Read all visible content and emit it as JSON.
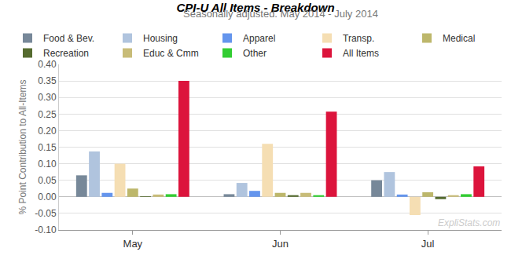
{
  "chart_data": {
    "type": "bar",
    "title": "CPI-U All Items - Breakdown",
    "subtitle": "Seasonally adjusted. May 2014 - July 2014",
    "y_label": "% Point Contribution to All-Items",
    "categories": [
      "May",
      "Jun",
      "Jul"
    ],
    "series": [
      {
        "name": "Food & Bev.",
        "color": "#778899",
        "values": [
          0.065,
          0.008,
          0.05
        ]
      },
      {
        "name": "Housing",
        "color": "#b0c4de",
        "values": [
          0.137,
          0.042,
          0.075
        ]
      },
      {
        "name": "Apparel",
        "color": "#6495ed",
        "values": [
          0.012,
          0.018,
          0.007
        ]
      },
      {
        "name": "Transp.",
        "color": "#f5deb3",
        "values": [
          0.1,
          0.16,
          -0.055
        ]
      },
      {
        "name": "Medical",
        "color": "#bdb76b",
        "values": [
          0.025,
          0.012,
          0.014
        ]
      },
      {
        "name": "Recreation",
        "color": "#556b2f",
        "values": [
          0.002,
          0.005,
          -0.007
        ]
      },
      {
        "name": "Educ & Cmm",
        "color": "#c8bc78",
        "values": [
          0.007,
          0.012,
          0.005
        ]
      },
      {
        "name": "Other",
        "color": "#32cd32",
        "values": [
          0.008,
          0.005,
          0.008
        ]
      },
      {
        "name": "All Items",
        "color": "#dc143c",
        "values": [
          0.35,
          0.257,
          0.092
        ]
      }
    ],
    "ylim": [
      -0.1,
      0.4
    ],
    "yticks": [
      {
        "value": -0.1,
        "label": "-0.10"
      },
      {
        "value": -0.05,
        "label": "-0.05"
      },
      {
        "value": 0,
        "label": "0.00"
      },
      {
        "value": 0.05,
        "label": "0.05"
      },
      {
        "value": 0.1,
        "label": "0.10"
      },
      {
        "value": 0.15,
        "label": "0.15"
      },
      {
        "value": 0.2,
        "label": "0.20"
      },
      {
        "value": 0.25,
        "label": "0.25"
      },
      {
        "value": 0.3,
        "label": "0.30"
      },
      {
        "value": 0.35,
        "label": "0.35"
      },
      {
        "value": 0.4,
        "label": "0.40"
      }
    ],
    "grid": true,
    "legend": "top",
    "annotations": [
      "ExpliStats.com"
    ]
  }
}
